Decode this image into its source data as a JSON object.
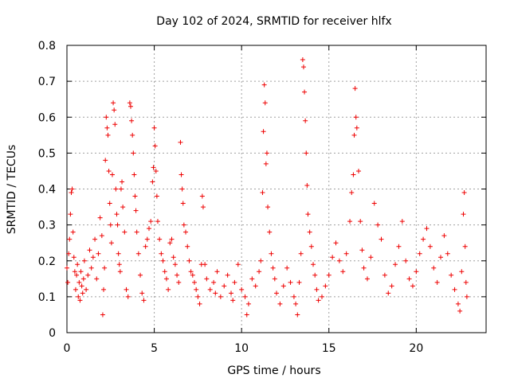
{
  "chart_data": {
    "type": "scatter",
    "title": "Day 102 of 2024, SRMTID for receiver hlfx",
    "xlabel": "GPS time / hours",
    "ylabel": "SRMTID / TECUs",
    "xlim": [
      0,
      24
    ],
    "ylim": [
      0,
      0.8
    ],
    "x_ticks": [
      0,
      5,
      10,
      15,
      20
    ],
    "x_tick_labels": [
      "0",
      "5",
      "10",
      "15",
      "20"
    ],
    "y_ticks": [
      0,
      0.1,
      0.2,
      0.3,
      0.4,
      0.5,
      0.6,
      0.7,
      0.8
    ],
    "y_tick_labels": [
      "0",
      "0.1",
      "0.2",
      "0.3",
      "0.4",
      "0.5",
      "0.6",
      "0.7",
      "0.8"
    ],
    "grid": true,
    "marker": "+",
    "series": [
      {
        "name": "SRMTID",
        "color": "#ee0000",
        "points": [
          [
            0.0,
            0.18
          ],
          [
            0.05,
            0.14
          ],
          [
            0.1,
            0.22
          ],
          [
            0.15,
            0.26
          ],
          [
            0.2,
            0.33
          ],
          [
            0.25,
            0.39
          ],
          [
            0.3,
            0.4
          ],
          [
            0.35,
            0.28
          ],
          [
            0.4,
            0.21
          ],
          [
            0.45,
            0.17
          ],
          [
            0.5,
            0.12
          ],
          [
            0.55,
            0.16
          ],
          [
            0.6,
            0.19
          ],
          [
            0.65,
            0.1
          ],
          [
            0.7,
            0.14
          ],
          [
            0.75,
            0.09
          ],
          [
            0.8,
            0.17
          ],
          [
            0.85,
            0.13
          ],
          [
            0.9,
            0.11
          ],
          [
            0.95,
            0.15
          ],
          [
            1.0,
            0.2
          ],
          [
            1.1,
            0.12
          ],
          [
            1.2,
            0.16
          ],
          [
            1.3,
            0.23
          ],
          [
            1.4,
            0.18
          ],
          [
            1.5,
            0.21
          ],
          [
            1.6,
            0.26
          ],
          [
            1.7,
            0.15
          ],
          [
            1.8,
            0.22
          ],
          [
            1.9,
            0.32
          ],
          [
            2.0,
            0.27
          ],
          [
            2.05,
            0.05
          ],
          [
            2.1,
            0.12
          ],
          [
            2.15,
            0.18
          ],
          [
            2.2,
            0.48
          ],
          [
            2.25,
            0.6
          ],
          [
            2.3,
            0.57
          ],
          [
            2.35,
            0.55
          ],
          [
            2.4,
            0.45
          ],
          [
            2.45,
            0.36
          ],
          [
            2.5,
            0.3
          ],
          [
            2.55,
            0.25
          ],
          [
            2.6,
            0.44
          ],
          [
            2.65,
            0.64
          ],
          [
            2.7,
            0.62
          ],
          [
            2.75,
            0.58
          ],
          [
            2.8,
            0.4
          ],
          [
            2.85,
            0.33
          ],
          [
            2.9,
            0.3
          ],
          [
            2.95,
            0.22
          ],
          [
            3.0,
            0.19
          ],
          [
            3.05,
            0.17
          ],
          [
            3.1,
            0.4
          ],
          [
            3.15,
            0.42
          ],
          [
            3.2,
            0.35
          ],
          [
            3.3,
            0.28
          ],
          [
            3.4,
            0.12
          ],
          [
            3.5,
            0.1
          ],
          [
            3.6,
            0.64
          ],
          [
            3.65,
            0.63
          ],
          [
            3.7,
            0.59
          ],
          [
            3.75,
            0.55
          ],
          [
            3.8,
            0.5
          ],
          [
            3.85,
            0.44
          ],
          [
            3.9,
            0.38
          ],
          [
            3.95,
            0.34
          ],
          [
            4.0,
            0.28
          ],
          [
            4.1,
            0.22
          ],
          [
            4.2,
            0.16
          ],
          [
            4.3,
            0.11
          ],
          [
            4.4,
            0.09
          ],
          [
            4.5,
            0.24
          ],
          [
            4.6,
            0.26
          ],
          [
            4.7,
            0.29
          ],
          [
            4.8,
            0.31
          ],
          [
            4.9,
            0.42
          ],
          [
            4.95,
            0.46
          ],
          [
            5.0,
            0.57
          ],
          [
            5.05,
            0.52
          ],
          [
            5.1,
            0.45
          ],
          [
            5.15,
            0.38
          ],
          [
            5.2,
            0.31
          ],
          [
            5.3,
            0.26
          ],
          [
            5.4,
            0.22
          ],
          [
            5.5,
            0.2
          ],
          [
            5.6,
            0.17
          ],
          [
            5.7,
            0.15
          ],
          [
            5.8,
            0.12
          ],
          [
            5.9,
            0.25
          ],
          [
            6.0,
            0.26
          ],
          [
            6.1,
            0.21
          ],
          [
            6.2,
            0.19
          ],
          [
            6.3,
            0.16
          ],
          [
            6.4,
            0.14
          ],
          [
            6.5,
            0.53
          ],
          [
            6.55,
            0.44
          ],
          [
            6.6,
            0.4
          ],
          [
            6.65,
            0.36
          ],
          [
            6.7,
            0.3
          ],
          [
            6.8,
            0.28
          ],
          [
            6.9,
            0.24
          ],
          [
            7.0,
            0.2
          ],
          [
            7.1,
            0.17
          ],
          [
            7.2,
            0.16
          ],
          [
            7.3,
            0.14
          ],
          [
            7.4,
            0.12
          ],
          [
            7.5,
            0.1
          ],
          [
            7.6,
            0.08
          ],
          [
            7.7,
            0.19
          ],
          [
            7.75,
            0.38
          ],
          [
            7.8,
            0.35
          ],
          [
            7.9,
            0.19
          ],
          [
            8.0,
            0.15
          ],
          [
            8.2,
            0.12
          ],
          [
            8.4,
            0.14
          ],
          [
            8.5,
            0.11
          ],
          [
            8.6,
            0.17
          ],
          [
            8.8,
            0.1
          ],
          [
            9.0,
            0.13
          ],
          [
            9.2,
            0.16
          ],
          [
            9.4,
            0.11
          ],
          [
            9.5,
            0.09
          ],
          [
            9.6,
            0.14
          ],
          [
            9.8,
            0.19
          ],
          [
            10.0,
            0.12
          ],
          [
            10.2,
            0.1
          ],
          [
            10.3,
            0.05
          ],
          [
            10.4,
            0.08
          ],
          [
            10.6,
            0.15
          ],
          [
            10.8,
            0.13
          ],
          [
            11.0,
            0.17
          ],
          [
            11.1,
            0.2
          ],
          [
            11.2,
            0.39
          ],
          [
            11.25,
            0.56
          ],
          [
            11.3,
            0.69
          ],
          [
            11.35,
            0.64
          ],
          [
            11.4,
            0.47
          ],
          [
            11.45,
            0.5
          ],
          [
            11.5,
            0.35
          ],
          [
            11.6,
            0.28
          ],
          [
            11.7,
            0.22
          ],
          [
            11.8,
            0.18
          ],
          [
            11.9,
            0.15
          ],
          [
            12.0,
            0.11
          ],
          [
            12.2,
            0.08
          ],
          [
            12.4,
            0.13
          ],
          [
            12.6,
            0.18
          ],
          [
            12.8,
            0.14
          ],
          [
            13.0,
            0.1
          ],
          [
            13.1,
            0.08
          ],
          [
            13.2,
            0.05
          ],
          [
            13.3,
            0.14
          ],
          [
            13.4,
            0.22
          ],
          [
            13.5,
            0.76
          ],
          [
            13.55,
            0.74
          ],
          [
            13.6,
            0.67
          ],
          [
            13.65,
            0.59
          ],
          [
            13.7,
            0.5
          ],
          [
            13.75,
            0.41
          ],
          [
            13.8,
            0.33
          ],
          [
            13.9,
            0.28
          ],
          [
            14.0,
            0.24
          ],
          [
            14.1,
            0.19
          ],
          [
            14.2,
            0.16
          ],
          [
            14.3,
            0.12
          ],
          [
            14.4,
            0.09
          ],
          [
            14.6,
            0.1
          ],
          [
            14.8,
            0.13
          ],
          [
            15.0,
            0.16
          ],
          [
            15.2,
            0.21
          ],
          [
            15.4,
            0.25
          ],
          [
            15.6,
            0.2
          ],
          [
            15.8,
            0.17
          ],
          [
            16.0,
            0.22
          ],
          [
            16.2,
            0.31
          ],
          [
            16.3,
            0.39
          ],
          [
            16.4,
            0.44
          ],
          [
            16.45,
            0.55
          ],
          [
            16.5,
            0.68
          ],
          [
            16.55,
            0.6
          ],
          [
            16.6,
            0.57
          ],
          [
            16.7,
            0.45
          ],
          [
            16.8,
            0.31
          ],
          [
            16.9,
            0.23
          ],
          [
            17.0,
            0.18
          ],
          [
            17.2,
            0.15
          ],
          [
            17.4,
            0.21
          ],
          [
            17.6,
            0.36
          ],
          [
            17.8,
            0.3
          ],
          [
            18.0,
            0.26
          ],
          [
            18.2,
            0.16
          ],
          [
            18.4,
            0.11
          ],
          [
            18.6,
            0.13
          ],
          [
            18.8,
            0.19
          ],
          [
            19.0,
            0.24
          ],
          [
            19.2,
            0.31
          ],
          [
            19.4,
            0.2
          ],
          [
            19.6,
            0.15
          ],
          [
            19.8,
            0.13
          ],
          [
            20.0,
            0.17
          ],
          [
            20.2,
            0.22
          ],
          [
            20.4,
            0.26
          ],
          [
            20.6,
            0.29
          ],
          [
            20.8,
            0.24
          ],
          [
            21.0,
            0.18
          ],
          [
            21.2,
            0.14
          ],
          [
            21.4,
            0.21
          ],
          [
            21.6,
            0.27
          ],
          [
            21.8,
            0.22
          ],
          [
            22.0,
            0.16
          ],
          [
            22.2,
            0.12
          ],
          [
            22.4,
            0.08
          ],
          [
            22.5,
            0.06
          ],
          [
            22.6,
            0.17
          ],
          [
            22.7,
            0.33
          ],
          [
            22.75,
            0.39
          ],
          [
            22.8,
            0.24
          ],
          [
            22.85,
            0.14
          ],
          [
            22.9,
            0.1
          ]
        ]
      }
    ]
  }
}
